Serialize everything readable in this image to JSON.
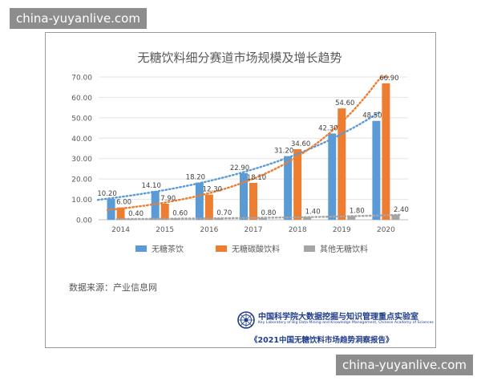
{
  "watermark": "china-yuyanlive.com",
  "source_note": "数据来源：产业信息网",
  "lab_name": "中国科学院大数据挖掘与知识管理重点实验室",
  "lab_name_en": "Key Laboratory of Big Data Mining and Knowledge Management, Chinese Academy of Sciences",
  "report_title": "《2021中国无糖饮料市场趋势洞察报告》",
  "colors": {
    "tea": "#5b9bd5",
    "soda": "#ed7d31",
    "other": "#a5a5a5",
    "emblem": "#1f3d8a"
  },
  "chart_data": {
    "type": "bar",
    "title": "无糖饮料细分赛道市场规模及增长趋势",
    "categories": [
      "2014",
      "2015",
      "2016",
      "2017",
      "2018",
      "2019",
      "2020"
    ],
    "series": [
      {
        "name": "无糖茶饮",
        "values": [
          10.2,
          14.1,
          18.2,
          22.9,
          31.2,
          42.3,
          48.5
        ]
      },
      {
        "name": "无糖碳酸饮料",
        "values": [
          6.0,
          7.9,
          12.3,
          18.1,
          34.6,
          54.6,
          66.9
        ]
      },
      {
        "name": "其他无糖饮料",
        "values": [
          0.4,
          0.6,
          0.7,
          0.8,
          1.4,
          1.8,
          2.4
        ]
      }
    ],
    "yticks": [
      "0.00",
      "10.00",
      "20.00",
      "30.00",
      "40.00",
      "50.00",
      "60.00",
      "70.00"
    ],
    "ylim": [
      0,
      70
    ],
    "trendlines": true,
    "grid": true,
    "legend": "bottom"
  }
}
